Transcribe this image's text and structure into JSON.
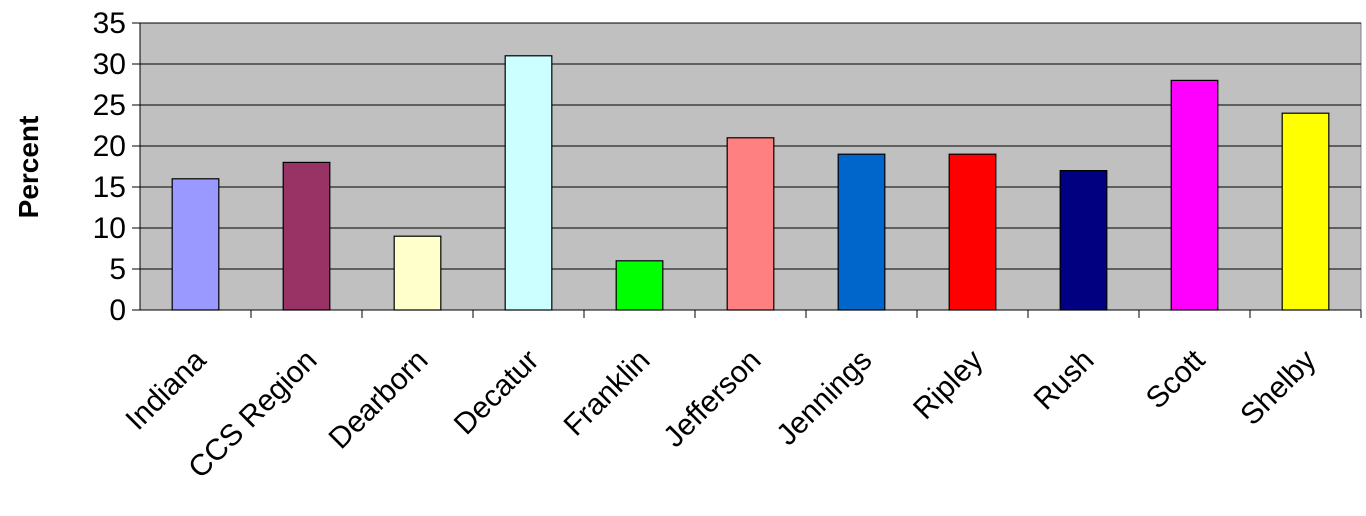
{
  "chart_data": {
    "type": "bar",
    "title": "",
    "xlabel": "",
    "ylabel": "Percent",
    "ylim": [
      0,
      35
    ],
    "yticks": [
      0,
      5,
      10,
      15,
      20,
      25,
      30,
      35
    ],
    "grid": true,
    "legend": "none",
    "categories": [
      "Indiana",
      "CCS Region",
      "Dearborn",
      "Decatur",
      "Franklin",
      "Jefferson",
      "Jennings",
      "Ripley",
      "Rush",
      "Scott",
      "Shelby"
    ],
    "values": [
      16,
      18,
      9,
      31,
      6,
      21,
      19,
      19,
      17,
      28,
      24
    ],
    "colors": [
      "#9999ff",
      "#993366",
      "#ffffcc",
      "#ccffff",
      "#00ff00",
      "#ff8080",
      "#0066cc",
      "#ff0000",
      "#000080",
      "#ff00ff",
      "#ffff00"
    ],
    "plot_background": "#c0c0c0"
  }
}
